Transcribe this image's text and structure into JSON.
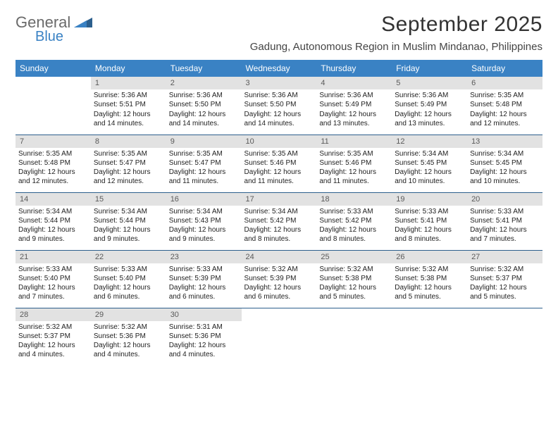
{
  "brand": {
    "line1": "General",
    "line2": "Blue",
    "accent": "#3a82c4",
    "gray": "#6a6a6a"
  },
  "title": "September 2025",
  "location": "Gadung, Autonomous Region in Muslim Mindanao, Philippines",
  "colors": {
    "header_bg": "#3a82c4",
    "header_text": "#ffffff",
    "daynum_bg": "#e2e2e2",
    "daynum_text": "#5a5a5a",
    "row_border": "#2c5f8d",
    "body_text": "#222222",
    "title_text": "#333333"
  },
  "typography": {
    "title_fontsize": 30,
    "location_fontsize": 15,
    "dayhead_fontsize": 12,
    "cell_fontsize": 10
  },
  "dayHeaders": [
    "Sunday",
    "Monday",
    "Tuesday",
    "Wednesday",
    "Thursday",
    "Friday",
    "Saturday"
  ],
  "weeks": [
    [
      {
        "outside": true
      },
      {
        "n": "1",
        "sunrise": "5:36 AM",
        "sunset": "5:51 PM",
        "daylight": "12 hours and 14 minutes."
      },
      {
        "n": "2",
        "sunrise": "5:36 AM",
        "sunset": "5:50 PM",
        "daylight": "12 hours and 14 minutes."
      },
      {
        "n": "3",
        "sunrise": "5:36 AM",
        "sunset": "5:50 PM",
        "daylight": "12 hours and 14 minutes."
      },
      {
        "n": "4",
        "sunrise": "5:36 AM",
        "sunset": "5:49 PM",
        "daylight": "12 hours and 13 minutes."
      },
      {
        "n": "5",
        "sunrise": "5:36 AM",
        "sunset": "5:49 PM",
        "daylight": "12 hours and 13 minutes."
      },
      {
        "n": "6",
        "sunrise": "5:35 AM",
        "sunset": "5:48 PM",
        "daylight": "12 hours and 12 minutes."
      }
    ],
    [
      {
        "n": "7",
        "sunrise": "5:35 AM",
        "sunset": "5:48 PM",
        "daylight": "12 hours and 12 minutes."
      },
      {
        "n": "8",
        "sunrise": "5:35 AM",
        "sunset": "5:47 PM",
        "daylight": "12 hours and 12 minutes."
      },
      {
        "n": "9",
        "sunrise": "5:35 AM",
        "sunset": "5:47 PM",
        "daylight": "12 hours and 11 minutes."
      },
      {
        "n": "10",
        "sunrise": "5:35 AM",
        "sunset": "5:46 PM",
        "daylight": "12 hours and 11 minutes."
      },
      {
        "n": "11",
        "sunrise": "5:35 AM",
        "sunset": "5:46 PM",
        "daylight": "12 hours and 11 minutes."
      },
      {
        "n": "12",
        "sunrise": "5:34 AM",
        "sunset": "5:45 PM",
        "daylight": "12 hours and 10 minutes."
      },
      {
        "n": "13",
        "sunrise": "5:34 AM",
        "sunset": "5:45 PM",
        "daylight": "12 hours and 10 minutes."
      }
    ],
    [
      {
        "n": "14",
        "sunrise": "5:34 AM",
        "sunset": "5:44 PM",
        "daylight": "12 hours and 9 minutes."
      },
      {
        "n": "15",
        "sunrise": "5:34 AM",
        "sunset": "5:44 PM",
        "daylight": "12 hours and 9 minutes."
      },
      {
        "n": "16",
        "sunrise": "5:34 AM",
        "sunset": "5:43 PM",
        "daylight": "12 hours and 9 minutes."
      },
      {
        "n": "17",
        "sunrise": "5:34 AM",
        "sunset": "5:42 PM",
        "daylight": "12 hours and 8 minutes."
      },
      {
        "n": "18",
        "sunrise": "5:33 AM",
        "sunset": "5:42 PM",
        "daylight": "12 hours and 8 minutes."
      },
      {
        "n": "19",
        "sunrise": "5:33 AM",
        "sunset": "5:41 PM",
        "daylight": "12 hours and 8 minutes."
      },
      {
        "n": "20",
        "sunrise": "5:33 AM",
        "sunset": "5:41 PM",
        "daylight": "12 hours and 7 minutes."
      }
    ],
    [
      {
        "n": "21",
        "sunrise": "5:33 AM",
        "sunset": "5:40 PM",
        "daylight": "12 hours and 7 minutes."
      },
      {
        "n": "22",
        "sunrise": "5:33 AM",
        "sunset": "5:40 PM",
        "daylight": "12 hours and 6 minutes."
      },
      {
        "n": "23",
        "sunrise": "5:33 AM",
        "sunset": "5:39 PM",
        "daylight": "12 hours and 6 minutes."
      },
      {
        "n": "24",
        "sunrise": "5:32 AM",
        "sunset": "5:39 PM",
        "daylight": "12 hours and 6 minutes."
      },
      {
        "n": "25",
        "sunrise": "5:32 AM",
        "sunset": "5:38 PM",
        "daylight": "12 hours and 5 minutes."
      },
      {
        "n": "26",
        "sunrise": "5:32 AM",
        "sunset": "5:38 PM",
        "daylight": "12 hours and 5 minutes."
      },
      {
        "n": "27",
        "sunrise": "5:32 AM",
        "sunset": "5:37 PM",
        "daylight": "12 hours and 5 minutes."
      }
    ],
    [
      {
        "n": "28",
        "sunrise": "5:32 AM",
        "sunset": "5:37 PM",
        "daylight": "12 hours and 4 minutes."
      },
      {
        "n": "29",
        "sunrise": "5:32 AM",
        "sunset": "5:36 PM",
        "daylight": "12 hours and 4 minutes."
      },
      {
        "n": "30",
        "sunrise": "5:31 AM",
        "sunset": "5:36 PM",
        "daylight": "12 hours and 4 minutes."
      },
      {
        "outside": true
      },
      {
        "outside": true
      },
      {
        "outside": true
      },
      {
        "outside": true
      }
    ]
  ],
  "labels": {
    "sunrise": "Sunrise: ",
    "sunset": "Sunset: ",
    "daylight": "Daylight: "
  }
}
